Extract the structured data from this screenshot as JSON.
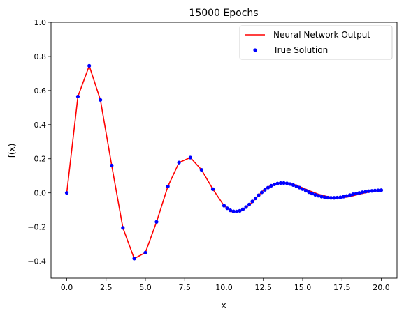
{
  "chart_data": {
    "type": "line",
    "title": "15000 Epochs",
    "xlabel": "x",
    "ylabel": "f(x)",
    "xlim": [
      -1.0,
      21.0
    ],
    "ylim": [
      -0.5,
      1.0
    ],
    "xticks": [
      "0.0",
      "2.5",
      "5.0",
      "7.5",
      "10.0",
      "12.5",
      "15.0",
      "17.5",
      "20.0"
    ],
    "yticks": [
      "−0.4",
      "−0.2",
      "0.0",
      "0.2",
      "0.4",
      "0.6",
      "0.8",
      "1.0"
    ],
    "grid": false,
    "legend_position": "upper-right",
    "series": [
      {
        "name": "Neural Network Output",
        "style": "line",
        "color": "#ff0000",
        "x": [
          0.0,
          0.71,
          1.43,
          2.14,
          2.86,
          3.57,
          4.29,
          5.0,
          5.71,
          6.43,
          7.14,
          7.86,
          8.57,
          9.29,
          10.0,
          10.5,
          11.0,
          11.5,
          12.0,
          12.5,
          13.0,
          13.5,
          14.0,
          14.5,
          15.0,
          15.5,
          16.0,
          16.5,
          17.0,
          17.5,
          18.0,
          18.5,
          19.0,
          19.5,
          20.0
        ],
        "y": [
          0.0,
          0.565,
          0.745,
          0.545,
          0.16,
          -0.205,
          -0.385,
          -0.35,
          -0.17,
          0.038,
          0.178,
          0.207,
          0.135,
          0.022,
          -0.075,
          -0.11,
          -0.107,
          -0.08,
          -0.035,
          0.015,
          0.045,
          0.058,
          0.058,
          0.048,
          0.03,
          0.01,
          -0.008,
          -0.02,
          -0.028,
          -0.029,
          -0.022,
          -0.01,
          0.001,
          0.009,
          0.015
        ]
      },
      {
        "name": "True Solution",
        "style": "markers",
        "color": "#0000ff",
        "x": [
          0.0,
          0.71,
          1.43,
          2.14,
          2.86,
          3.57,
          4.29,
          5.0,
          5.71,
          6.43,
          7.14,
          7.86,
          8.57,
          9.29,
          10.0,
          10.2,
          10.4,
          10.6,
          10.8,
          11.0,
          11.2,
          11.4,
          11.6,
          11.8,
          12.0,
          12.2,
          12.4,
          12.6,
          12.8,
          13.0,
          13.2,
          13.4,
          13.6,
          13.8,
          14.0,
          14.2,
          14.4,
          14.6,
          14.8,
          15.0,
          15.2,
          15.4,
          15.6,
          15.8,
          16.0,
          16.2,
          16.4,
          16.6,
          16.8,
          17.0,
          17.2,
          17.4,
          17.6,
          17.8,
          18.0,
          18.2,
          18.4,
          18.6,
          18.8,
          19.0,
          19.2,
          19.4,
          19.6,
          19.8,
          20.0
        ],
        "y": [
          0.0,
          0.565,
          0.745,
          0.545,
          0.16,
          -0.205,
          -0.385,
          -0.35,
          -0.17,
          0.038,
          0.178,
          0.207,
          0.135,
          0.022,
          -0.075,
          -0.09,
          -0.102,
          -0.108,
          -0.109,
          -0.105,
          -0.096,
          -0.083,
          -0.068,
          -0.05,
          -0.032,
          -0.014,
          0.003,
          0.018,
          0.031,
          0.042,
          0.05,
          0.055,
          0.058,
          0.058,
          0.056,
          0.052,
          0.046,
          0.039,
          0.031,
          0.022,
          0.013,
          0.004,
          -0.004,
          -0.011,
          -0.017,
          -0.022,
          -0.026,
          -0.028,
          -0.029,
          -0.029,
          -0.028,
          -0.026,
          -0.022,
          -0.018,
          -0.013,
          -0.008,
          -0.004,
          0.0,
          0.004,
          0.007,
          0.01,
          0.012,
          0.014,
          0.015,
          0.016
        ]
      }
    ]
  }
}
